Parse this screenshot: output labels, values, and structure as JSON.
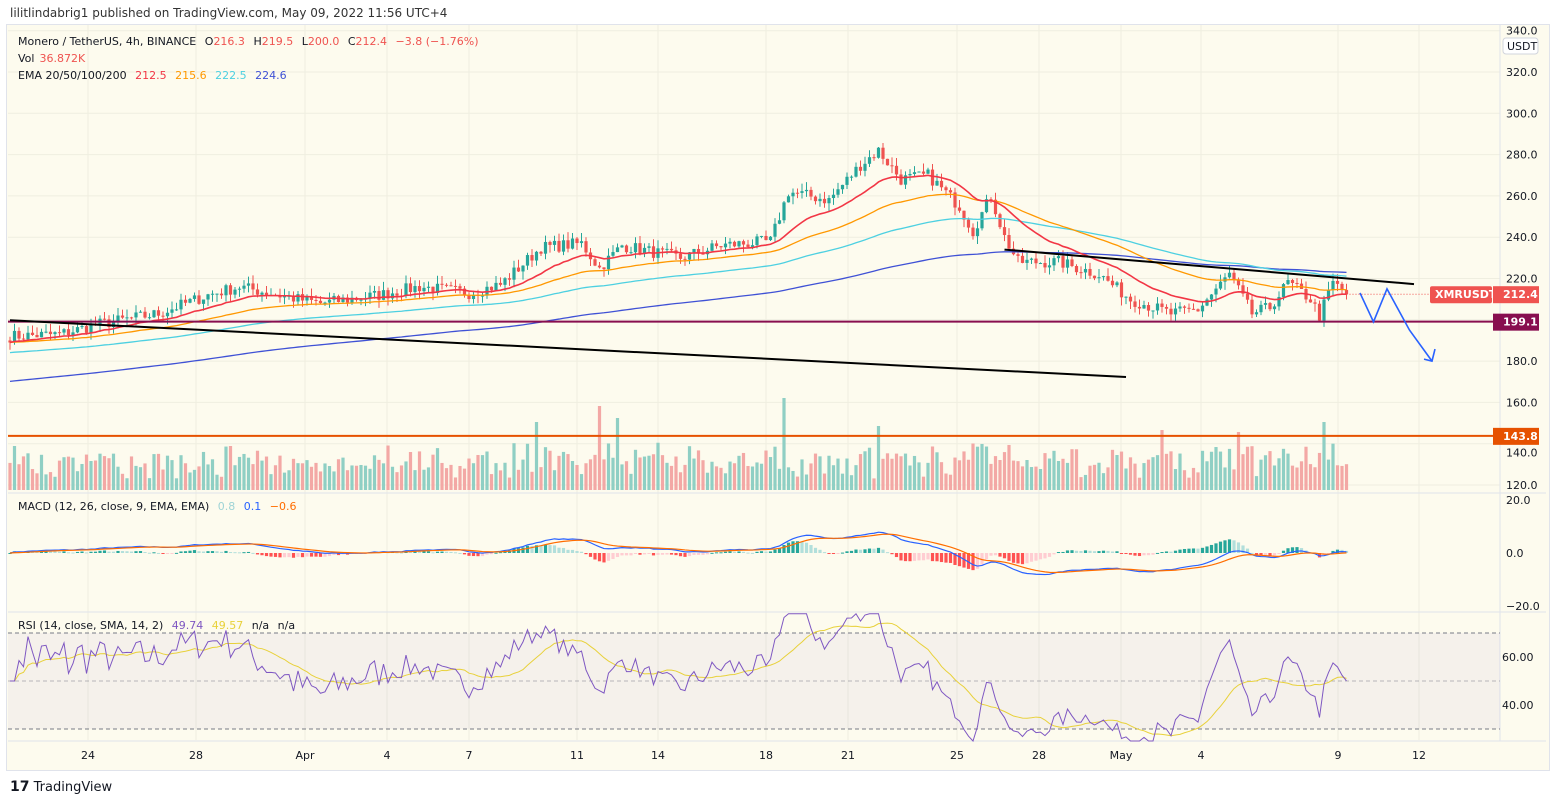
{
  "header": {
    "publisher": "lilitlindabrig1 published on TradingView.com, May 09, 2022 11:56 UTC+4"
  },
  "legend": {
    "symbol": "Monero / TetherUS, 4h, BINANCE",
    "o_label": "O",
    "o": "216.3",
    "h_label": "H",
    "h": "219.5",
    "l_label": "L",
    "l": "200.0",
    "c_label": "C",
    "c": "212.4",
    "change": "−3.8 (−1.76%)",
    "vol_label": "Vol",
    "vol": "36.872K",
    "ema_label": "EMA 20/50/100/200",
    "ema20": "212.5",
    "ema50": "215.6",
    "ema100": "222.5",
    "ema200": "224.6",
    "macd_label": "MACD (12, 26, close, 9, EMA, EMA)",
    "macd_hist": "0.8",
    "macd": "0.1",
    "macd_signal": "−0.6",
    "rsi_label": "RSI (14, close, SMA, 14, 2)",
    "rsi": "49.74",
    "rsi_sma": "49.57",
    "na1": "n/a",
    "na2": "n/a"
  },
  "colors": {
    "up": "#26a69a",
    "down": "#ef5350",
    "ema20": "#f23645",
    "ema50": "#ff9800",
    "ema100": "#4dd0e1",
    "ema200": "#3f51d5",
    "support": "#880e4f",
    "orange": "#e65100",
    "macd": "#2962ff",
    "signal": "#ff6d00",
    "rsi": "#7e57c2",
    "rsi_sma": "#e8d13a",
    "arrow": "#2962ff"
  },
  "price_axis": {
    "currency": "USDT",
    "ticks": [
      "340.0",
      "320.0",
      "300.0",
      "280.0",
      "260.0",
      "240.0",
      "220.0",
      "180.0",
      "160.0",
      "140.0",
      "120.0"
    ]
  },
  "labels": {
    "symbol_tag": "XMRUSDT",
    "last_price": "212.4",
    "support": "199.1",
    "orange_level": "143.8"
  },
  "macd_axis": {
    "ticks": [
      "20.0",
      "0.0",
      "−20.0"
    ]
  },
  "rsi_axis": {
    "ticks": [
      "60.00",
      "40.00"
    ]
  },
  "time_axis": {
    "ticks": [
      "24",
      "28",
      "Apr",
      "4",
      "7",
      "11",
      "14",
      "18",
      "21",
      "25",
      "28",
      "May",
      "4",
      "9",
      "12"
    ]
  },
  "footer": {
    "brand": "TradingView"
  },
  "chart_data": {
    "type": "candlestick",
    "symbol": "XMRUSDT",
    "interval": "4h",
    "ylim": [
      120,
      340
    ],
    "close_keypoints": [
      [
        0,
        192
      ],
      [
        11,
        193
      ],
      [
        20,
        198
      ],
      [
        33,
        203
      ],
      [
        44,
        212
      ],
      [
        51,
        216
      ],
      [
        64,
        210
      ],
      [
        69,
        208
      ],
      [
        82,
        212
      ],
      [
        91,
        216
      ],
      [
        102,
        213
      ],
      [
        109,
        217
      ],
      [
        118,
        235
      ],
      [
        127,
        237
      ],
      [
        131,
        225
      ],
      [
        136,
        236
      ],
      [
        149,
        230
      ],
      [
        158,
        236
      ],
      [
        169,
        238
      ],
      [
        173,
        262
      ],
      [
        182,
        258
      ],
      [
        189,
        275
      ],
      [
        193,
        282
      ],
      [
        198,
        268
      ],
      [
        204,
        270
      ],
      [
        211,
        255
      ],
      [
        214,
        243
      ],
      [
        218,
        260
      ],
      [
        221,
        240
      ],
      [
        224,
        228
      ],
      [
        233,
        228
      ],
      [
        242,
        222
      ],
      [
        249,
        210
      ],
      [
        258,
        203
      ],
      [
        264,
        205
      ],
      [
        271,
        222
      ],
      [
        276,
        203
      ],
      [
        280,
        206
      ],
      [
        284,
        218
      ],
      [
        289,
        210
      ],
      [
        291,
        202
      ],
      [
        294,
        218
      ],
      [
        297,
        212.4
      ]
    ],
    "volume_spikes": [
      [
        117,
        170
      ],
      [
        131,
        210
      ],
      [
        135,
        180
      ],
      [
        172,
        230
      ],
      [
        193,
        160
      ],
      [
        256,
        150
      ],
      [
        273,
        145
      ],
      [
        292,
        170
      ]
    ],
    "horizontal_levels": [
      199.1,
      143.8
    ],
    "trendlines": [
      {
        "from": [
          0,
          199.8
        ],
        "to": [
          248,
          172.3
        ]
      },
      {
        "from": [
          221,
          234
        ],
        "to": [
          312,
          217.3
        ]
      }
    ],
    "projection_path": [
      [
        300,
        213
      ],
      [
        303,
        199
      ],
      [
        306,
        215
      ],
      [
        311,
        195
      ],
      [
        316,
        180
      ]
    ]
  }
}
